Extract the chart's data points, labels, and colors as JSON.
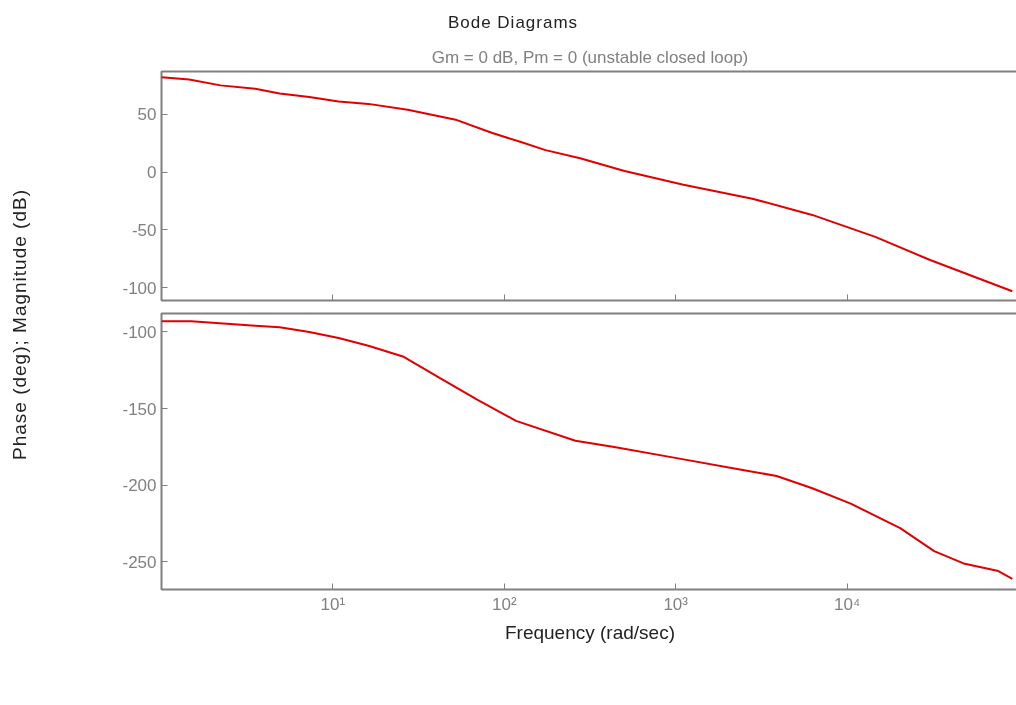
{
  "chart_data": [
    {
      "type": "line",
      "title": "Bode Diagrams",
      "subtitle": "Gm = 0 dB, Pm = 0 (unstable closed loop)",
      "ylabel": "Phase (deg); Magnitude (dB)",
      "log": "x",
      "grid": false,
      "tick_labels": "y",
      "xlim": [
        1,
        100000
      ],
      "xticks": [
        {
          "value": 10,
          "label": null
        },
        {
          "value": 100,
          "label": null
        },
        {
          "value": 1000,
          "label": null
        },
        {
          "value": 10000,
          "label": null
        }
      ],
      "ylim": [
        -111,
        87
      ],
      "yticks": [
        -100,
        -50,
        0,
        50
      ],
      "series": [
        {
          "color": "#e00000",
          "x": [
            1,
            1.45,
            2.21,
            3.52,
            4.89,
            7.28,
            10.8,
            16.1,
            27.3,
            52.9,
            84.3,
            125,
            174,
            277,
            503,
            1110,
            2800,
            6260,
            14600,
            30500,
            92000
          ],
          "values": [
            82,
            80,
            75,
            72,
            68,
            65,
            61,
            59,
            54,
            45,
            34,
            26,
            19,
            12,
            1,
            -11,
            -23,
            -37,
            -56,
            -76,
            -103
          ]
        }
      ]
    },
    {
      "type": "line",
      "xlabel": "Frequency (rad/sec)",
      "log": "x",
      "grid": false,
      "xlim": [
        1,
        100000
      ],
      "xticks": [
        {
          "value": 10,
          "label": "10¹"
        },
        {
          "value": 100,
          "label": "10²"
        },
        {
          "value": 1000,
          "label": "10³"
        },
        {
          "value": 10000,
          "label": "10⁴"
        }
      ],
      "ylim": [
        -268,
        -88
      ],
      "yticks": [
        -250,
        -200,
        -150,
        -100
      ],
      "series": [
        {
          "color": "#e00000",
          "x": [
            1,
            1.49,
            3.52,
            4.89,
            7.28,
            10.8,
            16.1,
            25.6,
            40.5,
            69,
            117,
            260,
            438,
            976,
            2460,
            3880,
            6260,
            10500,
            20400,
            32200,
            47800,
            76300,
            92000
          ],
          "values": [
            -93,
            -93,
            -96,
            -97,
            -100,
            -104,
            -109,
            -116,
            -129,
            -144,
            -158,
            -171,
            -175,
            -182,
            -190,
            -194,
            -202,
            -212,
            -228,
            -243,
            -251,
            -256,
            -261
          ]
        }
      ]
    }
  ]
}
